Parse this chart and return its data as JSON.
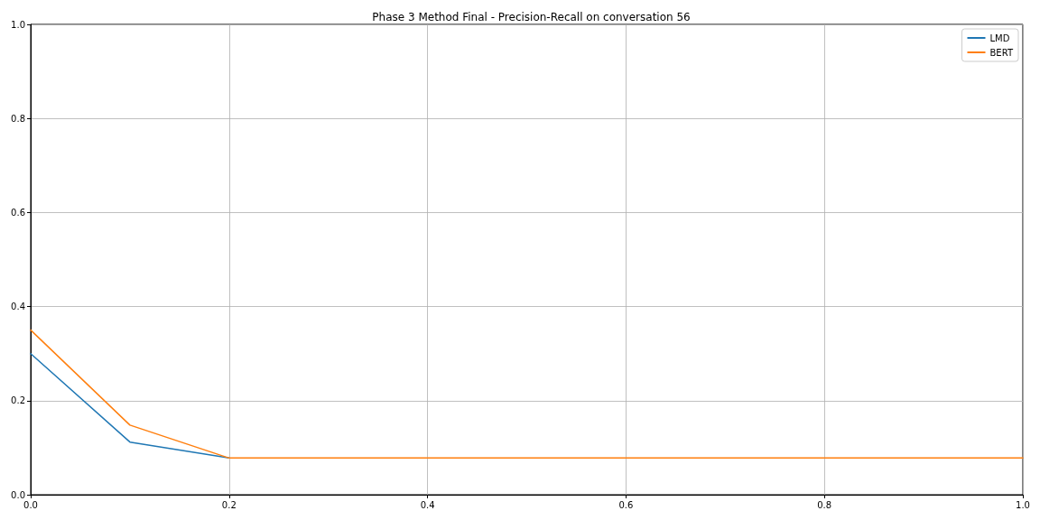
{
  "chart_data": {
    "type": "line",
    "title": "Phase 3 Method Final - Precision-Recall on conversation 56",
    "x": [
      0,
      0.1,
      0.2,
      0.3,
      0.4,
      0.5,
      0.6,
      0.7,
      0.8,
      0.9,
      1.0
    ],
    "series": [
      {
        "name": "LMD",
        "color": "#1f77b4",
        "values": [
          0.3,
          0.112,
          0.078,
          null,
          null,
          null,
          null,
          null,
          null,
          null,
          null
        ]
      },
      {
        "name": "BERT",
        "color": "#ff7f0e",
        "values": [
          0.35,
          0.148,
          0.078,
          0.078,
          0.078,
          0.078,
          0.078,
          0.078,
          0.078,
          0.078,
          0.078
        ]
      }
    ],
    "xlim": [
      0,
      1
    ],
    "xticks": [
      {
        "value": 0,
        "label": "0.0"
      },
      0.2,
      0.4,
      0.6,
      0.8,
      {
        "value": 1,
        "label": "1.0"
      }
    ],
    "ylim": [
      0,
      1
    ],
    "yticks": [
      {
        "value": 0,
        "label": "0.0"
      },
      0.2,
      0.4,
      0.6,
      0.8,
      {
        "value": 1,
        "label": "1.0"
      }
    ],
    "grid": true,
    "legend": "top right"
  }
}
